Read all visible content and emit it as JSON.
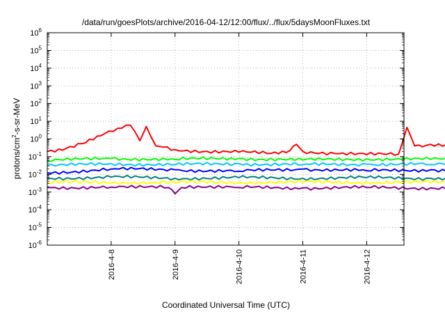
{
  "chart_data": {
    "type": "line",
    "title": "/data/run/goesPlots/archive/2016-04-12/12:00/flux/../flux/5daysMoonFluxes.txt",
    "xlabel": "Coordinated Universal Time (UTC)",
    "ylabel": "protons/cm²-s-sr-MeV",
    "y_scale": "log",
    "ylim": [
      1e-06,
      1000000.0
    ],
    "xlim": [
      "2016-04-07 00:00",
      "2016-04-12 14:00"
    ],
    "x_ticks": [
      "2016-4-8",
      "2016-4-9",
      "2016-4-10",
      "2016-4-11",
      "2016-4-12"
    ],
    "y_ticks": [
      {
        "base": "10",
        "exp": "-6"
      },
      {
        "base": "10",
        "exp": "-5"
      },
      {
        "base": "10",
        "exp": "-4"
      },
      {
        "base": "10",
        "exp": "-3"
      },
      {
        "base": "10",
        "exp": "-2"
      },
      {
        "base": "10",
        "exp": "-1"
      },
      {
        "base": "10",
        "exp": "0"
      },
      {
        "base": "10",
        "exp": "1"
      },
      {
        "base": "10",
        "exp": "2"
      },
      {
        "base": "10",
        "exp": "3"
      },
      {
        "base": "10",
        "exp": "4"
      },
      {
        "base": "10",
        "exp": "5"
      },
      {
        "base": "10",
        "exp": "6"
      }
    ],
    "grid": true,
    "series": [
      {
        "color": "#ff0000",
        "values": [
          [
            0.0,
            0.2
          ],
          [
            0.3,
            0.3
          ],
          [
            0.6,
            0.6
          ],
          [
            0.9,
            2.0
          ],
          [
            1.1,
            4.0
          ],
          [
            1.3,
            6.0
          ],
          [
            1.45,
            0.8
          ],
          [
            1.55,
            5.0
          ],
          [
            1.7,
            0.4
          ],
          [
            2.0,
            0.25
          ],
          [
            2.5,
            0.2
          ],
          [
            3.0,
            0.18
          ],
          [
            3.5,
            0.15
          ],
          [
            3.8,
            0.22
          ],
          [
            3.9,
            0.5
          ],
          [
            4.0,
            0.2
          ],
          [
            4.5,
            0.15
          ],
          [
            5.0,
            0.13
          ],
          [
            5.5,
            0.14
          ],
          [
            5.63,
            4.5
          ],
          [
            5.75,
            0.4
          ],
          [
            6.0,
            0.5
          ],
          [
            6.5,
            0.45
          ],
          [
            7.0,
            0.3
          ],
          [
            7.5,
            0.3
          ],
          [
            8.0,
            0.22
          ],
          [
            8.5,
            0.25
          ],
          [
            9.0,
            0.3
          ],
          [
            9.3,
            0.7
          ],
          [
            9.5,
            1.2
          ],
          [
            9.6,
            0.4
          ],
          [
            10.0,
            0.2
          ],
          [
            10.5,
            0.25
          ],
          [
            10.9,
            0.4
          ]
        ]
      },
      {
        "color": "#00ff00",
        "values": [
          [
            0.0,
            0.06
          ],
          [
            1.0,
            0.08
          ],
          [
            2.0,
            0.07
          ],
          [
            3.0,
            0.08
          ],
          [
            4.0,
            0.065
          ],
          [
            5.0,
            0.075
          ],
          [
            6.0,
            0.07
          ],
          [
            7.0,
            0.08
          ],
          [
            8.0,
            0.07
          ],
          [
            9.0,
            0.075
          ],
          [
            10.0,
            0.08
          ],
          [
            10.9,
            0.09
          ]
        ]
      },
      {
        "color": "#0000ff",
        "values": [
          [
            0.0,
            0.012
          ],
          [
            1.0,
            0.02
          ],
          [
            2.0,
            0.018
          ],
          [
            3.0,
            0.015
          ],
          [
            4.0,
            0.02
          ],
          [
            5.0,
            0.016
          ],
          [
            6.0,
            0.018
          ],
          [
            7.0,
            0.015
          ],
          [
            8.0,
            0.018
          ],
          [
            9.0,
            0.016
          ],
          [
            10.0,
            0.017
          ],
          [
            10.9,
            0.015
          ]
        ]
      },
      {
        "color": "#00c8ff",
        "values": [
          [
            0.0,
            0.03
          ],
          [
            1.0,
            0.04
          ],
          [
            2.0,
            0.035
          ],
          [
            3.0,
            0.04
          ],
          [
            4.0,
            0.035
          ],
          [
            5.0,
            0.038
          ],
          [
            6.0,
            0.036
          ],
          [
            7.0,
            0.04
          ],
          [
            8.0,
            0.035
          ],
          [
            9.0,
            0.038
          ],
          [
            10.0,
            0.04
          ],
          [
            10.9,
            0.04
          ]
        ]
      },
      {
        "color": "#008080",
        "values": [
          [
            0.0,
            0.006
          ],
          [
            1.0,
            0.007
          ],
          [
            2.0,
            0.006
          ],
          [
            3.0,
            0.0065
          ],
          [
            4.0,
            0.006
          ],
          [
            5.0,
            0.0065
          ],
          [
            6.0,
            0.006
          ],
          [
            7.0,
            0.0065
          ],
          [
            8.0,
            0.006
          ],
          [
            9.0,
            0.0065
          ],
          [
            10.0,
            0.006
          ],
          [
            10.9,
            0.0065
          ]
        ]
      },
      {
        "color": "#ffff00",
        "values": [
          [
            0.0,
            0.0035
          ],
          [
            2.0,
            0.0035
          ],
          [
            4.0,
            0.0036
          ],
          [
            6.0,
            0.0035
          ],
          [
            8.0,
            0.0035
          ],
          [
            10.0,
            0.0036
          ],
          [
            10.9,
            0.0035
          ]
        ]
      },
      {
        "color": "#8b008b",
        "values": [
          [
            0.0,
            0.0018
          ],
          [
            1.0,
            0.0019
          ],
          [
            1.9,
            0.0018
          ],
          [
            2.0,
            0.0008
          ],
          [
            2.1,
            0.0018
          ],
          [
            3.0,
            0.0018
          ],
          [
            4.0,
            0.0017
          ],
          [
            5.0,
            0.0018
          ],
          [
            6.0,
            0.0017
          ],
          [
            7.0,
            0.0018
          ],
          [
            8.0,
            0.0017
          ],
          [
            9.0,
            0.0018
          ],
          [
            9.5,
            0.0012
          ],
          [
            10.0,
            0.0017
          ],
          [
            10.9,
            0.0016
          ]
        ]
      }
    ]
  }
}
